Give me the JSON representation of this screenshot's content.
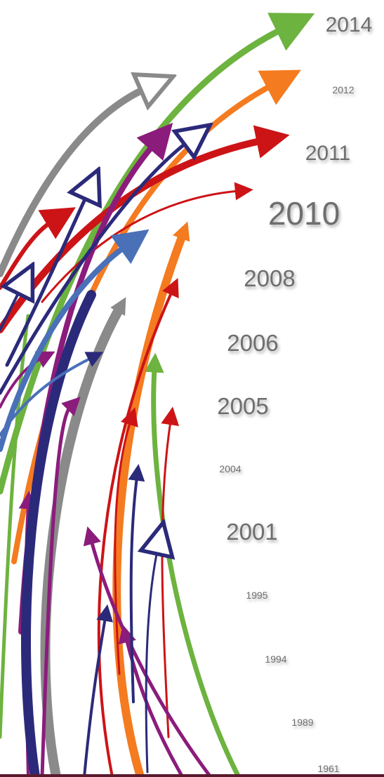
{
  "years": [
    "2014",
    "2012",
    "2011",
    "2010",
    "2008",
    "2006",
    "2005",
    "2004",
    "2001",
    "1995",
    "1994",
    "1989",
    "1961"
  ]
}
